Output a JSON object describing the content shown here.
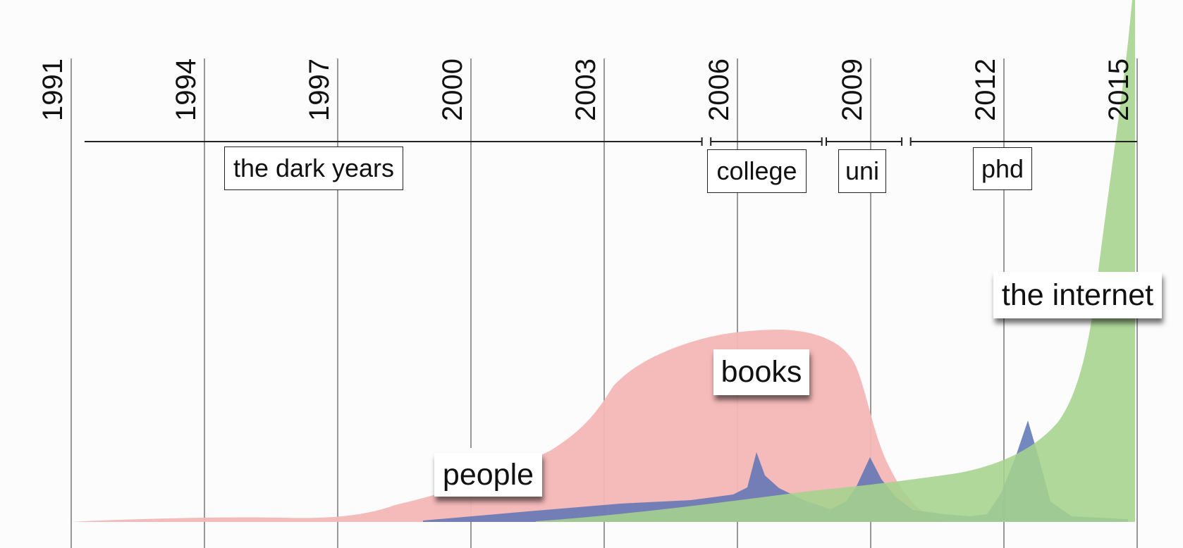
{
  "years": [
    "1991",
    "1994",
    "1997",
    "2000",
    "2003",
    "2006",
    "2009",
    "2012",
    "2015"
  ],
  "periods": [
    {
      "label": "the dark years",
      "from": 1991.3,
      "to": 2005.2
    },
    {
      "label": "college",
      "from": 2005.4,
      "to": 2007.9
    },
    {
      "label": "uni",
      "from": 2008.0,
      "to": 2009.7
    },
    {
      "label": "phd",
      "from": 2009.9,
      "to": 2015.0
    }
  ],
  "series": [
    {
      "name": "people",
      "color": "#f4b6b6"
    },
    {
      "name": "books",
      "color": "#5a73b4"
    },
    {
      "name": "the internet",
      "color": "#a5d38d"
    }
  ],
  "colors": {
    "people": "#f4b6b6",
    "books": "#5a73b4",
    "internet": "#a5d38d"
  }
}
